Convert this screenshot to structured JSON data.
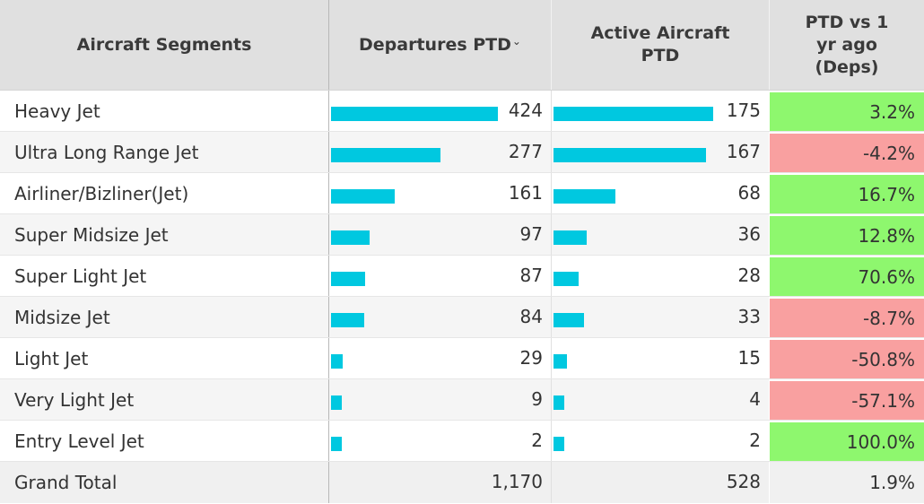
{
  "header": {
    "segment": "Aircraft Segments",
    "departures": "Departures PTD",
    "departures_sort_icon": "⌄",
    "active": "Active Aircraft PTD",
    "pct": "PTD vs 1 yr ago (Deps)"
  },
  "colors": {
    "bar": "#00c8e0",
    "positive": "#8ef76e",
    "negative": "#f9a0a0",
    "header_bg": "#e0e0e0"
  },
  "scale": {
    "departures_max": 424,
    "active_max": 175
  },
  "rows": [
    {
      "segment": "Heavy Jet",
      "departures": 424,
      "departures_label": "424",
      "active": 175,
      "active_label": "175",
      "pct": "3.2%",
      "trend": "pos"
    },
    {
      "segment": "Ultra Long Range Jet",
      "departures": 277,
      "departures_label": "277",
      "active": 167,
      "active_label": "167",
      "pct": "-4.2%",
      "trend": "neg"
    },
    {
      "segment": "Airliner/Bizliner(Jet)",
      "departures": 161,
      "departures_label": "161",
      "active": 68,
      "active_label": "68",
      "pct": "16.7%",
      "trend": "pos"
    },
    {
      "segment": "Super Midsize Jet",
      "departures": 97,
      "departures_label": "97",
      "active": 36,
      "active_label": "36",
      "pct": "12.8%",
      "trend": "pos"
    },
    {
      "segment": "Super Light Jet",
      "departures": 87,
      "departures_label": "87",
      "active": 28,
      "active_label": "28",
      "pct": "70.6%",
      "trend": "pos"
    },
    {
      "segment": "Midsize Jet",
      "departures": 84,
      "departures_label": "84",
      "active": 33,
      "active_label": "33",
      "pct": "-8.7%",
      "trend": "neg"
    },
    {
      "segment": "Light Jet",
      "departures": 29,
      "departures_label": "29",
      "active": 15,
      "active_label": "15",
      "pct": "-50.8%",
      "trend": "neg"
    },
    {
      "segment": "Very Light Jet",
      "departures": 9,
      "departures_label": "9",
      "active": 4,
      "active_label": "4",
      "pct": "-57.1%",
      "trend": "neg"
    },
    {
      "segment": "Entry Level Jet",
      "departures": 2,
      "departures_label": "2",
      "active": 2,
      "active_label": "2",
      "pct": "100.0%",
      "trend": "pos"
    }
  ],
  "total": {
    "segment": "Grand Total",
    "departures": "1,170",
    "active": "528",
    "pct": "1.9%"
  }
}
